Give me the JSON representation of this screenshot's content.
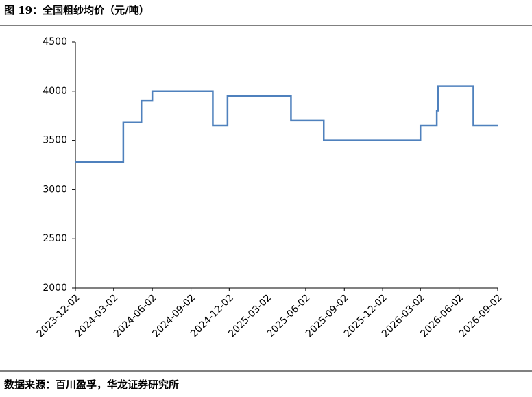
{
  "chart_data": {
    "type": "line",
    "title": "图 19：全国粗纱均价（元/吨）",
    "source": "数据来源：百川盈孚，华龙证券研究所",
    "x": [
      "2023-12-02",
      "2024-03-25",
      "2024-03-25",
      "2024-05-07",
      "2024-05-07",
      "2024-06-02",
      "2024-06-02",
      "2024-10-24",
      "2024-10-24",
      "2024-11-28",
      "2024-11-28",
      "2025-04-28",
      "2025-04-28",
      "2025-07-15",
      "2025-07-15",
      "2026-03-02",
      "2026-03-02",
      "2026-04-10",
      "2026-04-10",
      "2026-04-13",
      "2026-04-13",
      "2026-07-06",
      "2026-07-06",
      "2026-09-02"
    ],
    "series": [
      {
        "color": "#4f81bd",
        "values": [
          3280,
          3280,
          3680,
          3680,
          3900,
          3900,
          4000,
          4000,
          3650,
          3650,
          3950,
          3950,
          3700,
          3700,
          3500,
          3500,
          3650,
          3650,
          3800,
          3800,
          4050,
          4050,
          3650,
          3650
        ]
      }
    ],
    "xlim": [
      "2023-12-02",
      "2026-09-02"
    ],
    "xticks": [
      "2023-12-02",
      "2024-03-02",
      "2024-06-02",
      "2024-09-02",
      "2024-12-02",
      "2025-03-02",
      "2025-06-02",
      "2025-09-02",
      "2025-12-02",
      "2026-03-02",
      "2026-06-02",
      "2026-09-02"
    ],
    "ylim": [
      2000,
      4500
    ],
    "yticks": [
      2000,
      2500,
      3000,
      3500,
      4000,
      4500
    ],
    "grid": false
  }
}
